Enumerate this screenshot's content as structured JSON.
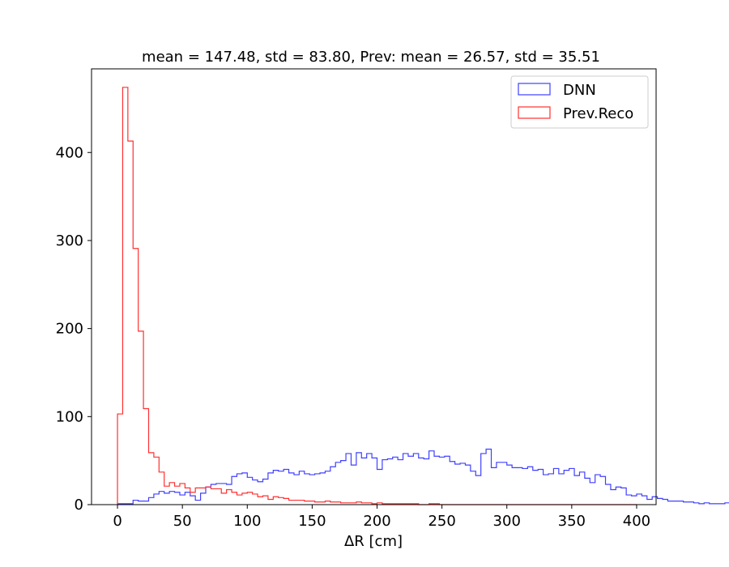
{
  "chart_data": {
    "type": "histogram",
    "title": "mean = 147.48, std = 83.80, Prev: mean = 26.57, std = 35.51",
    "xlabel": "ΔR [cm]",
    "ylabel": "",
    "xlim": [
      -20,
      415
    ],
    "ylim": [
      0,
      495
    ],
    "xticks": [
      0,
      50,
      100,
      150,
      200,
      250,
      300,
      350,
      400
    ],
    "yticks": [
      0,
      100,
      200,
      300,
      400
    ],
    "grid": false,
    "legend_position": "top-right",
    "bin_start": 0,
    "bin_width": 4,
    "series": [
      {
        "name": "DNN",
        "color": "#4040ff",
        "values": [
          1,
          1,
          1,
          5,
          4,
          4,
          8,
          12,
          15,
          13,
          15,
          14,
          11,
          14,
          10,
          5,
          13,
          20,
          23,
          24,
          24,
          23,
          32,
          35,
          36,
          31,
          28,
          26,
          29,
          36,
          39,
          38,
          40,
          36,
          34,
          38,
          35,
          34,
          35,
          36,
          38,
          43,
          48,
          50,
          58,
          45,
          59,
          53,
          58,
          53,
          40,
          51,
          52,
          54,
          51,
          58,
          55,
          58,
          53,
          52,
          61,
          55,
          54,
          55,
          49,
          46,
          47,
          45,
          38,
          33,
          58,
          63,
          42,
          48,
          48,
          45,
          42,
          42,
          41,
          43,
          39,
          40,
          34,
          35,
          41,
          35,
          39,
          41,
          33,
          37,
          30,
          25,
          34,
          32,
          23,
          17,
          20,
          19,
          11,
          10,
          12,
          10,
          6,
          9,
          7,
          6,
          4,
          4,
          4,
          3,
          3,
          2,
          1,
          2,
          1,
          1,
          1,
          2,
          0,
          1,
          1,
          0,
          0,
          0,
          0,
          0,
          0,
          0,
          0,
          0,
          0,
          0,
          0,
          0,
          0,
          0,
          0,
          0,
          0,
          0,
          0,
          0,
          0,
          0,
          0,
          0,
          0,
          0,
          0,
          0,
          0,
          0,
          0,
          0,
          0,
          0,
          0,
          0,
          0,
          0,
          0,
          0,
          0,
          0,
          0,
          0,
          0,
          0,
          0,
          0,
          0,
          0,
          0,
          0,
          0,
          0,
          0,
          0,
          0,
          0,
          0,
          0,
          0,
          0,
          0,
          0,
          0,
          0,
          0,
          0,
          0,
          0,
          0,
          0,
          0,
          0,
          0,
          0,
          0,
          0,
          0,
          0,
          0,
          0,
          0,
          0
        ]
      },
      {
        "name": "Prev.Reco",
        "color": "#ff3030",
        "values": [
          103,
          474,
          413,
          291,
          197,
          109,
          59,
          54,
          37,
          21,
          25,
          21,
          24,
          19,
          14,
          19,
          19,
          20,
          18,
          18,
          13,
          17,
          14,
          11,
          13,
          14,
          12,
          9,
          10,
          6,
          9,
          8,
          7,
          5,
          5,
          5,
          4,
          4,
          3,
          3,
          4,
          3,
          3,
          2,
          2,
          2,
          3,
          2,
          2,
          1,
          2,
          1,
          1,
          1,
          1,
          1,
          1,
          1,
          0,
          0,
          1,
          1,
          0,
          0,
          0,
          0,
          0,
          0,
          0,
          0,
          0,
          0,
          0,
          0,
          0,
          0,
          0,
          0,
          0,
          0,
          0,
          0,
          0,
          0,
          0,
          0,
          0,
          0,
          0,
          0,
          0,
          0,
          0,
          0,
          0,
          0,
          0,
          0,
          0,
          0
        ]
      }
    ]
  }
}
